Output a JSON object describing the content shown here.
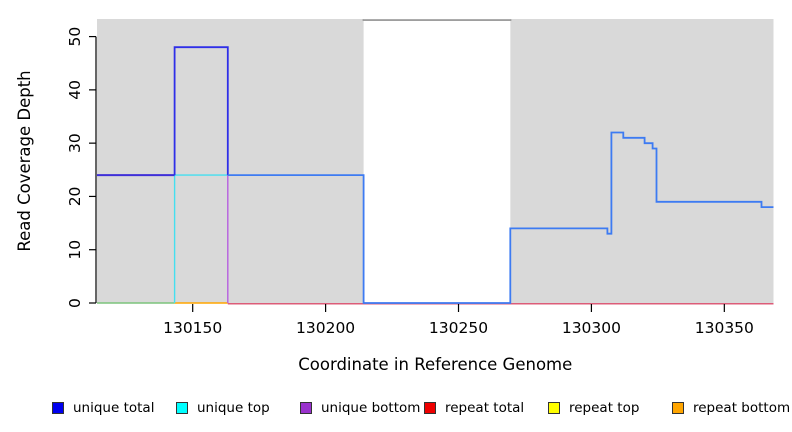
{
  "chart_data": {
    "type": "line",
    "subtype": "step-coverage-plot",
    "title": "",
    "xlabel": "Coordinate in Reference Genome",
    "ylabel": "Read Coverage Depth",
    "xlim": [
      130114,
      130368.5
    ],
    "ylim": [
      0,
      53.3
    ],
    "x_ticks": [
      130150,
      130200,
      130250,
      130300,
      130350
    ],
    "y_ticks": [
      0,
      10,
      20,
      30,
      40,
      50
    ],
    "grid": false,
    "plot_bg_color": "#d9d9d9",
    "bg_regions": [
      {
        "name": "masked-region-left",
        "x1": 130114,
        "x2": 130214.3
      },
      {
        "name": "masked-region-right",
        "x1": 130269.5,
        "x2": 130368.5
      }
    ],
    "gap_region": {
      "name": "unmasked-gap",
      "x1": 130214.3,
      "x2": 130269.5,
      "top_line_value": 53.1,
      "top_line_color": "#909090"
    },
    "series": [
      {
        "name": "baseline-left",
        "color": "#7cc47c",
        "width": 1.5,
        "points": [
          [
            130114,
            0
          ],
          [
            130143.2,
            0
          ]
        ]
      },
      {
        "name": "repeat-bottom-baseline",
        "color": "#ffa500",
        "width": 1.5,
        "points": [
          [
            130143.2,
            0
          ],
          [
            130163.2,
            0
          ]
        ]
      },
      {
        "name": "repeat-total-baseline",
        "color": "#dc5c78",
        "width": 1.5,
        "dy": 0.7,
        "points": [
          [
            130163.2,
            0
          ],
          [
            130368.5,
            0
          ]
        ]
      },
      {
        "name": "unique-top",
        "color": "#44dff0",
        "width": 1.4,
        "points": [
          [
            130143.2,
            0
          ],
          [
            130143.2,
            24
          ],
          [
            130163.2,
            24
          ]
        ]
      },
      {
        "name": "unique-bottom",
        "color": "#b75fe0",
        "width": 1.4,
        "points": [
          [
            130163.2,
            0
          ],
          [
            130163.2,
            24
          ]
        ]
      },
      {
        "name": "unique-total-left",
        "color": "#3e2fd8",
        "width": 2,
        "points": [
          [
            130114,
            24
          ],
          [
            130143.2,
            24
          ]
        ]
      },
      {
        "name": "unique-total-peak",
        "color": "#2f2fe8",
        "width": 1.8,
        "points": [
          [
            130143.2,
            24
          ],
          [
            130143.2,
            48
          ],
          [
            130163.2,
            48
          ],
          [
            130163.2,
            24
          ]
        ]
      },
      {
        "name": "unique-total",
        "color": "#3d7bf2",
        "width": 1.8,
        "points": [
          [
            130163.2,
            24
          ],
          [
            130214.3,
            24
          ],
          [
            130214.3,
            0
          ],
          [
            130269.5,
            0
          ],
          [
            130269.5,
            14
          ],
          [
            130306,
            14
          ],
          [
            130306,
            13
          ],
          [
            130307.5,
            13
          ],
          [
            130307.5,
            32
          ],
          [
            130312,
            32
          ],
          [
            130312,
            31
          ],
          [
            130320,
            31
          ],
          [
            130320,
            30
          ],
          [
            130323,
            30
          ],
          [
            130323,
            29
          ],
          [
            130324.5,
            29
          ],
          [
            130324.5,
            19
          ],
          [
            130364,
            19
          ],
          [
            130364,
            18
          ],
          [
            130368.5,
            18
          ]
        ]
      }
    ],
    "legend_position": "bottom",
    "legend": [
      {
        "label": "unique total",
        "color": "#0000ee"
      },
      {
        "label": "unique top",
        "color": "#00ffff"
      },
      {
        "label": "unique bottom",
        "color": "#9932cc"
      },
      {
        "label": "repeat total",
        "color": "#ee0000"
      },
      {
        "label": "repeat top",
        "color": "#ffff00"
      },
      {
        "label": "repeat bottom",
        "color": "#ffa500"
      }
    ]
  }
}
